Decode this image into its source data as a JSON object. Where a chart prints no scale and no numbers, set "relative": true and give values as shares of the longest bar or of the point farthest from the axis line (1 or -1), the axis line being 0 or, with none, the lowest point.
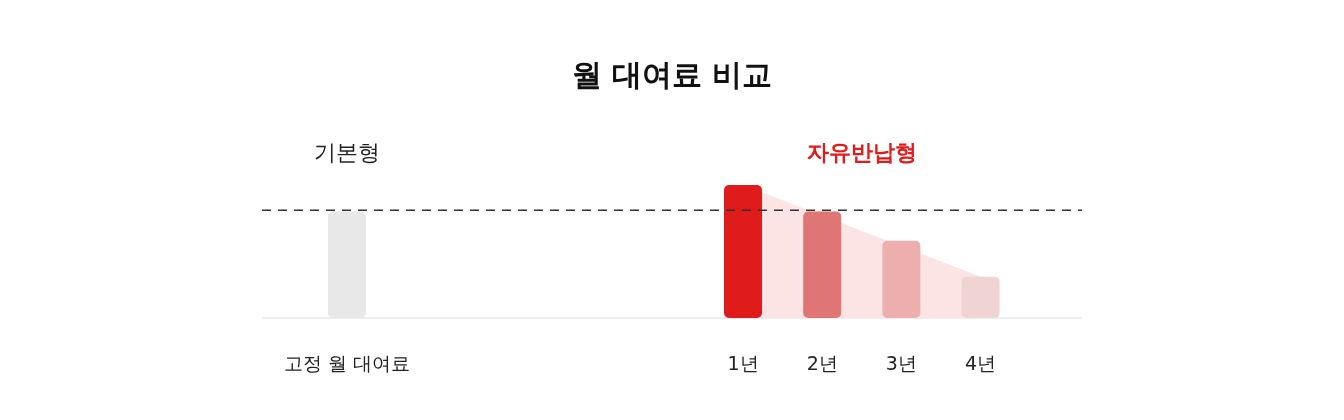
{
  "chart_data": {
    "type": "bar",
    "relative": true,
    "title": "월 대여료 비교",
    "annotations": [
      "기본형",
      "자유반납형"
    ],
    "categories": [
      "고정 월 대여료",
      null,
      null,
      null,
      null,
      "1년",
      "2년",
      "3년",
      "4년"
    ],
    "series": [
      {
        "type": "area",
        "color": "#fde4e4",
        "values": [
          null,
          null,
          null,
          null,
          null,
          1,
          null,
          null,
          0.31
        ]
      },
      {
        "values": [
          0.8,
          null,
          null,
          null,
          null,
          1,
          0.8,
          0.58,
          0.31
        ],
        "colors": [
          "#e8e8e8",
          null,
          null,
          null,
          null,
          "#e01b1b",
          "#e07575",
          "#edaeae",
          "#f0d3d3"
        ]
      }
    ],
    "ref_lines": [
      {
        "axis": "y",
        "value": 0.81,
        "color": "#333333",
        "line_style": "dashed"
      }
    ]
  }
}
